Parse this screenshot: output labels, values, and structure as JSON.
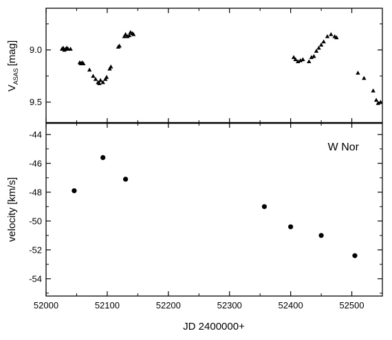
{
  "chart_data": [
    {
      "type": "scatter",
      "marker": "triangle",
      "title": "",
      "ylabel_main": "V",
      "ylabel_sub": "ASAS",
      "ylabel_unit": "[mag]",
      "xlim": [
        52000,
        52550
      ],
      "ylim": [
        8.6,
        9.7
      ],
      "y_inverted": true,
      "yticks": [
        "9.0",
        "9.5"
      ],
      "ytick_values": [
        9.0,
        9.5
      ],
      "grid": false,
      "x": [
        52026,
        52028,
        52030,
        52032,
        52034,
        52036,
        52040,
        52055,
        52057,
        52059,
        52061,
        52071,
        52077,
        52081,
        52085,
        52087,
        52089,
        52093,
        52097,
        52099,
        52104,
        52106,
        52118,
        52120,
        52128,
        52130,
        52133,
        52136,
        52138,
        52141,
        52143,
        52405,
        52408,
        52412,
        52416,
        52420,
        52430,
        52434,
        52438,
        52442,
        52446,
        52450,
        52454,
        52460,
        52466,
        52472,
        52475,
        52510,
        52520,
        52535,
        52540,
        52543,
        52547
      ],
      "y": [
        8.99,
        8.98,
        9.0,
        8.99,
        8.98,
        8.99,
        8.99,
        9.12,
        9.13,
        9.12,
        9.13,
        9.19,
        9.25,
        9.28,
        9.31,
        9.32,
        9.29,
        9.31,
        9.28,
        9.26,
        9.18,
        9.16,
        8.97,
        8.96,
        8.87,
        8.85,
        8.87,
        8.86,
        8.83,
        8.84,
        8.85,
        9.07,
        9.09,
        9.11,
        9.1,
        9.09,
        9.11,
        9.07,
        9.06,
        9.01,
        8.98,
        8.95,
        8.92,
        8.87,
        8.85,
        8.87,
        8.88,
        9.22,
        9.27,
        9.39,
        9.48,
        9.51,
        9.5
      ]
    },
    {
      "type": "scatter",
      "marker": "circle",
      "title": "",
      "annotation": "W Nor",
      "ylabel": "velocity [km/s]",
      "xlabel": "JD 2400000+",
      "xlim": [
        52000,
        52550
      ],
      "ylim": [
        -55.2,
        -43.2
      ],
      "yticks": [
        "-44",
        "-46",
        "-48",
        "-50",
        "-52",
        "-54"
      ],
      "ytick_values": [
        -44,
        -46,
        -48,
        -50,
        -52,
        -54
      ],
      "xticks": [
        "52000",
        "52100",
        "52200",
        "52300",
        "52400",
        "52500"
      ],
      "xtick_values": [
        52000,
        52100,
        52200,
        52300,
        52400,
        52500
      ],
      "grid": false,
      "x": [
        52046,
        52093,
        52130,
        52357,
        52400,
        52450,
        52505
      ],
      "y": [
        -47.9,
        -45.6,
        -47.1,
        -49.0,
        -50.4,
        -51.0,
        -52.4
      ]
    }
  ]
}
